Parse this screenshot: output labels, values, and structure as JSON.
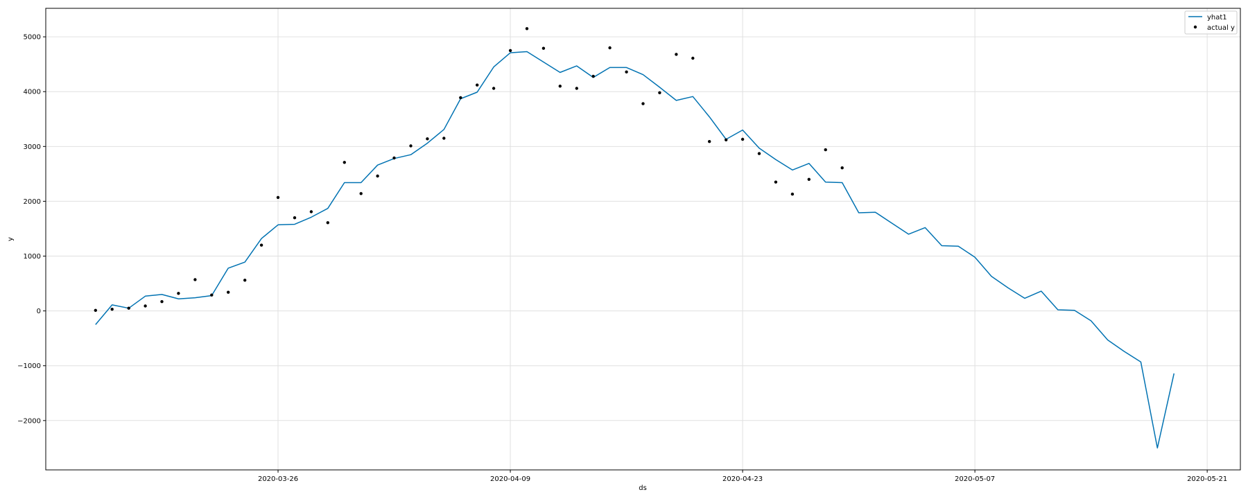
{
  "chart_data": {
    "type": "line",
    "xlabel": "ds",
    "ylabel": "y",
    "xlim": [
      "2020-03-12",
      "2020-05-23"
    ],
    "ylim": [
      -2900,
      5520
    ],
    "x_ticks": [
      "2020-03-26",
      "2020-04-09",
      "2020-04-23",
      "2020-05-07",
      "2020-05-21"
    ],
    "y_ticks": [
      -2000,
      -1000,
      0,
      1000,
      2000,
      3000,
      4000,
      5000
    ],
    "y_tick_labels": [
      "−2000",
      "−1000",
      "0",
      "1000",
      "2000",
      "3000",
      "4000",
      "5000"
    ],
    "grid": true,
    "legend_position": "top-right",
    "series": [
      {
        "name": "yhat1",
        "kind": "line",
        "color": "#0072B2",
        "x_start": "2020-03-15",
        "values": [
          -250,
          110,
          50,
          270,
          300,
          220,
          240,
          280,
          780,
          890,
          1320,
          1570,
          1580,
          1710,
          1870,
          2340,
          2340,
          2660,
          2780,
          2850,
          3060,
          3310,
          3870,
          3990,
          4450,
          4710,
          4730,
          4540,
          4350,
          4470,
          4260,
          4440,
          4440,
          4310,
          4080,
          3840,
          3910,
          3540,
          3130,
          3300,
          2970,
          2760,
          2570,
          2690,
          2350,
          2340,
          1790,
          1800,
          1600,
          1400,
          1520,
          1190,
          1180,
          980,
          630,
          420,
          230,
          360,
          20,
          10,
          -180,
          -530,
          -740,
          -930,
          -2500,
          -1140
        ]
      },
      {
        "name": "actual y",
        "kind": "scatter",
        "color": "#000000",
        "x_start": "2020-03-15",
        "values": [
          10,
          30,
          50,
          90,
          170,
          320,
          570,
          290,
          340,
          560,
          1200,
          2070,
          1700,
          1810,
          1610,
          2710,
          2140,
          2460,
          2790,
          3010,
          3140,
          3150,
          3890,
          4120,
          4060,
          4750,
          5150,
          4790,
          4100,
          4060,
          4280,
          4800,
          4360,
          3780,
          3980,
          4680,
          4610,
          3090,
          3120,
          3130,
          2870,
          2350,
          2130,
          2400,
          2940,
          2610
        ]
      }
    ]
  }
}
